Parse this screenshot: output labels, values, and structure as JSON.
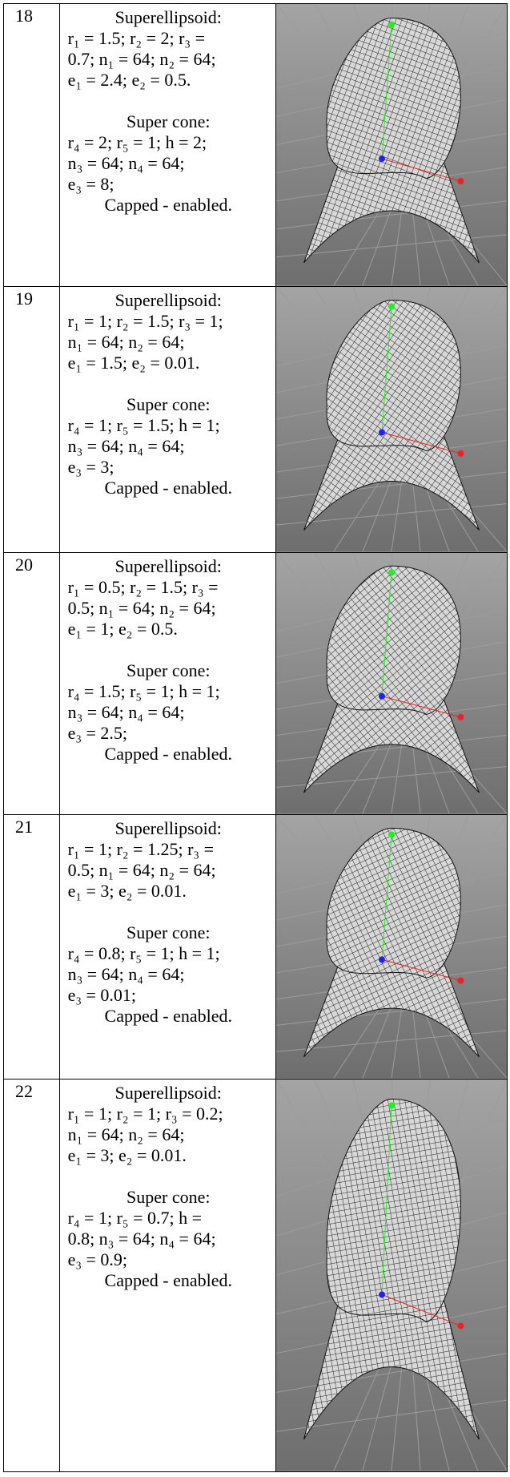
{
  "rows": [
    {
      "number": "18",
      "height": 353,
      "superellipsoid": {
        "title": "Superellipsoid:",
        "lines": [
          "r₁ = 1.5; r₂ = 2; r₃ =",
          "0.7; n₁ = 64; n₂ = 64;",
          "e₁ = 2.4; e₂ = 0.5."
        ]
      },
      "super_cone": {
        "title": "Super cone:",
        "lines": [
          "r₄ = 2; r₅ = 1; h = 2;",
          "n₃ = 64; n₄ = 64;",
          "e₃ = 8;"
        ],
        "capped": "Capped  - enabled."
      }
    },
    {
      "number": "19",
      "height": 332,
      "superellipsoid": {
        "title": "Superellipsoid:",
        "lines": [
          "r₁ = 1; r₂ = 1.5; r₃ = 1;",
          "n₁ = 64; n₂ = 64;",
          "e₁ = 1.5; e₂ = 0.01."
        ]
      },
      "super_cone": {
        "title": "Super cone:",
        "lines": [
          "r₄ = 1; r₅ = 1.5; h = 1;",
          "n₃ = 64; n₄ = 64;",
          "e₃ = 3;"
        ],
        "capped": "Capped  - enabled."
      }
    },
    {
      "number": "20",
      "height": 327,
      "superellipsoid": {
        "title": "Superellipsoid:",
        "lines": [
          "r₁ = 0.5; r₂ = 1.5; r₃ =",
          "0.5; n₁ = 64; n₂ = 64;",
          "e₁ = 1; e₂ = 0.5."
        ]
      },
      "super_cone": {
        "title": "Super cone:",
        "lines": [
          "r₄ = 1.5; r₅ = 1; h = 1;",
          "n₃ = 64; n₄ = 64;",
          "e₃ = 2.5;"
        ],
        "capped": "Capped  - enabled."
      }
    },
    {
      "number": "21",
      "height": 330,
      "superellipsoid": {
        "title": "Superellipsoid:",
        "lines": [
          "r₁ = 1; r₂ = 1.25; r₃ =",
          "0.5; n₁ = 64; n₂ = 64;",
          "e₁ = 3; e₂ = 0.01."
        ]
      },
      "super_cone": {
        "title": "Super cone:",
        "lines": [
          "r₄ = 0.8; r₅ = 1; h = 1;",
          "n₃ = 64; n₄ = 64;",
          "e₃ = 0.01;"
        ],
        "capped": "Capped  - enabled."
      }
    },
    {
      "number": "22",
      "height": 490,
      "superellipsoid": {
        "title": "Superellipsoid:",
        "lines": [
          "r₁ = 1; r₂ = 1; r₃ = 0.2;",
          "n₁ = 64; n₂ = 64;",
          "e₁ = 3; e₂ = 0.01."
        ]
      },
      "super_cone": {
        "title": "Super cone:",
        "lines": [
          "r₄ = 1; r₅ = 0.7; h =",
          "0.8; n₃ = 64; n₄ = 64;",
          "e₃ = 0.9;"
        ],
        "capped": "Capped  - enabled."
      }
    }
  ]
}
